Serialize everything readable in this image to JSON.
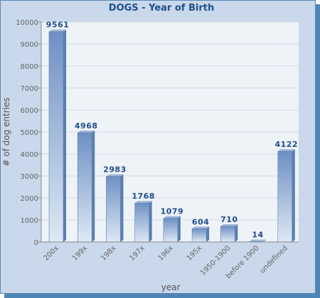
{
  "colors": {
    "frame": "#c9d8ea",
    "frame_border": "#5b88b5",
    "shadow": "#4f86b6",
    "plot_bg": "#eef3f8",
    "grid": "#d4dbe3",
    "bar_top": "#6f90c4",
    "bar_bottom": "#dde8f4",
    "bar_side": "#5a7fb0",
    "bar_cap": "#9fb6d6",
    "title": "#1f4e8c",
    "label": "#1f4e8c"
  },
  "chart_data": {
    "type": "bar",
    "title": "DOGS - Year of Birth",
    "xlabel": "year",
    "ylabel": "# of dog entries",
    "ylim": [
      0,
      10000
    ],
    "yticks": [
      0,
      1000,
      2000,
      3000,
      4000,
      5000,
      6000,
      7000,
      8000,
      9000,
      10000
    ],
    "grid": true,
    "categories": [
      "200x",
      "199x",
      "198x",
      "197x",
      "196x",
      "195x",
      "1950-1900",
      "before 1900",
      "undefined"
    ],
    "values": [
      9561,
      4968,
      2983,
      1768,
      1079,
      604,
      710,
      14,
      4122
    ]
  }
}
